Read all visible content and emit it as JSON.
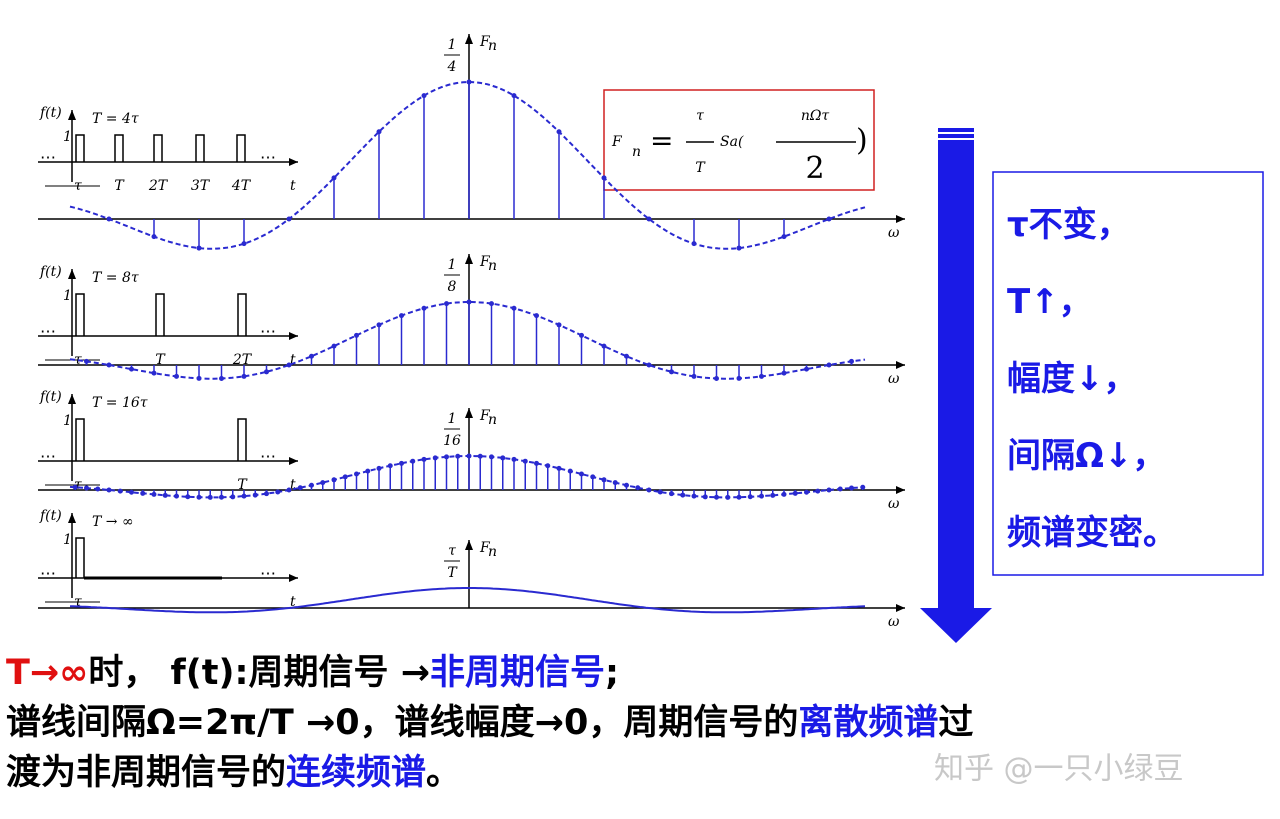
{
  "panels": [
    {
      "f_label": "f(t)",
      "one": "1",
      "period": "T = 4τ",
      "dots": "…",
      "tau": "τ",
      "ticks": [
        "T",
        "2T",
        "3T",
        "4T"
      ],
      "t": "t",
      "num": "1",
      "den": "4",
      "spec": "F",
      "spec_sub": "n",
      "omega": "ω"
    },
    {
      "f_label": "f(t)",
      "one": "1",
      "period": "T = 8τ",
      "dots": "…",
      "tau": "τ",
      "ticks": [
        "T",
        "2T"
      ],
      "t": "t",
      "num": "1",
      "den": "8",
      "spec": "F",
      "spec_sub": "n",
      "omega": "ω"
    },
    {
      "f_label": "f(t)",
      "one": "1",
      "period": "T = 16τ",
      "dots": "…",
      "tau": "τ",
      "ticks": [
        "T"
      ],
      "t": "t",
      "num": "1",
      "den": "16",
      "spec": "F",
      "spec_sub": "n",
      "omega": "ω"
    },
    {
      "f_label": "f(t)",
      "one": "1",
      "period": "T → ∞",
      "dots": "…",
      "tau": "τ",
      "ticks": [],
      "t": "t",
      "num": "τ",
      "den": "T",
      "spec": "F",
      "spec_sub": "n",
      "omega": "ω"
    }
  ],
  "formula": {
    "lhs": "F",
    "lhs_sub": "n",
    "eq": "=",
    "num1": "τ",
    "den1": "T",
    "func": "Sa(",
    "num2": "nΩτ",
    "den2": "2",
    "close": ")"
  },
  "side_note": [
    "τ不变，",
    "T↑，",
    "幅度↓，",
    "间隔Ω↓，",
    "频谱变密。"
  ],
  "conclusion": [
    [
      {
        "text": "T→∞",
        "color": "#e01010"
      },
      {
        "text": "时，",
        "color": "#000000"
      },
      {
        "text": " f(t)",
        "color": "#000000"
      },
      {
        "text": ":周期信号 →",
        "color": "#000000"
      },
      {
        "text": "非周期信号",
        "color": "#1a1ae6"
      },
      {
        "text": ";",
        "color": "#000000"
      }
    ],
    [
      {
        "text": "谱线间隔Ω=2π/T →0，谱线幅度→0，周期信号的",
        "color": "#000000"
      },
      {
        "text": "离散频谱",
        "color": "#1a1ae6"
      },
      {
        "text": "过",
        "color": "#000000"
      }
    ],
    [
      {
        "text": "渡为非周期信号的",
        "color": "#000000"
      },
      {
        "text": "连续频谱",
        "color": "#1a1ae6"
      },
      {
        "text": "。",
        "color": "#000000"
      }
    ]
  ],
  "watermark": "知乎 @一只小绿豆"
}
